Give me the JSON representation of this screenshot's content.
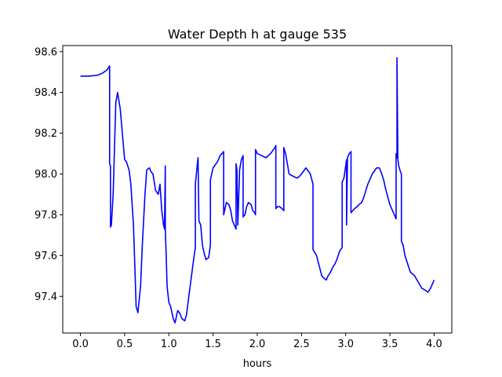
{
  "chart_data": {
    "type": "line",
    "title": "Water Depth h at gauge 535",
    "xlabel": "hours",
    "ylabel": "",
    "xlim": [
      -0.2,
      4.2
    ],
    "ylim": [
      97.22,
      98.63
    ],
    "xticks": [
      0.0,
      0.5,
      1.0,
      1.5,
      2.0,
      2.5,
      3.0,
      3.5,
      4.0
    ],
    "xtick_labels": [
      "0.0",
      "0.5",
      "1.0",
      "1.5",
      "2.0",
      "2.5",
      "3.0",
      "3.5",
      "4.0"
    ],
    "yticks": [
      97.4,
      97.6,
      97.8,
      98.0,
      98.2,
      98.4,
      98.6
    ],
    "ytick_labels": [
      "97.4",
      "97.6",
      "97.8",
      "98.0",
      "98.2",
      "98.4",
      "98.6"
    ],
    "grid": false,
    "series": [
      {
        "color": "#0000ff",
        "x": [
          0.0,
          0.1,
          0.2,
          0.25,
          0.3,
          0.33,
          0.33,
          0.34,
          0.34,
          0.35,
          0.37,
          0.4,
          0.42,
          0.45,
          0.47,
          0.5,
          0.52,
          0.55,
          0.57,
          0.6,
          0.63,
          0.65,
          0.68,
          0.7,
          0.73,
          0.75,
          0.78,
          0.8,
          0.82,
          0.85,
          0.88,
          0.9,
          0.92,
          0.94,
          0.95,
          0.96,
          0.96,
          0.97,
          0.98,
          1.0,
          1.02,
          1.05,
          1.07,
          1.1,
          1.12,
          1.15,
          1.18,
          1.2,
          1.22,
          1.25,
          1.28,
          1.3,
          1.3,
          1.32,
          1.33,
          1.34,
          1.36,
          1.38,
          1.4,
          1.42,
          1.45,
          1.47,
          1.47,
          1.5,
          1.55,
          1.58,
          1.6,
          1.62,
          1.62,
          1.63,
          1.65,
          1.68,
          1.7,
          1.72,
          1.73,
          1.75,
          1.76,
          1.76,
          1.77,
          1.78,
          1.8,
          1.82,
          1.84,
          1.84,
          1.86,
          1.86,
          1.88,
          1.9,
          1.93,
          1.95,
          1.97,
          1.98,
          1.98,
          2.0,
          2.05,
          2.1,
          2.15,
          2.2,
          2.21,
          2.21,
          2.23,
          2.25,
          2.28,
          2.3,
          2.3,
          2.32,
          2.34,
          2.36,
          2.4,
          2.45,
          2.48,
          2.5,
          2.55,
          2.6,
          2.63,
          2.63,
          2.67,
          2.7,
          2.73,
          2.75,
          2.78,
          2.8,
          2.83,
          2.85,
          2.88,
          2.9,
          2.93,
          2.96,
          2.96,
          2.98,
          3.0,
          3.01,
          3.01,
          3.02,
          3.04,
          3.06,
          3.06,
          3.08,
          3.1,
          3.13,
          3.15,
          3.18,
          3.2,
          3.25,
          3.3,
          3.35,
          3.38,
          3.4,
          3.43,
          3.45,
          3.48,
          3.5,
          3.53,
          3.56,
          3.57,
          3.57,
          3.58,
          3.58,
          3.59,
          3.6,
          3.62,
          3.63,
          3.63,
          3.65,
          3.67,
          3.7,
          3.73,
          3.78,
          3.82,
          3.86,
          3.9,
          3.93,
          3.96,
          4.0
        ],
        "y": [
          98.48,
          98.48,
          98.485,
          98.495,
          98.51,
          98.53,
          98.05,
          98.04,
          97.74,
          97.75,
          97.9,
          98.35,
          98.4,
          98.32,
          98.22,
          98.07,
          98.06,
          98.02,
          97.95,
          97.75,
          97.35,
          97.32,
          97.45,
          97.65,
          97.9,
          98.02,
          98.03,
          98.01,
          98.0,
          97.92,
          97.9,
          97.95,
          97.82,
          97.75,
          97.73,
          98.04,
          97.73,
          97.6,
          97.45,
          97.37,
          97.35,
          97.29,
          97.27,
          97.33,
          97.32,
          97.29,
          97.28,
          97.31,
          97.38,
          97.48,
          97.58,
          97.64,
          97.95,
          98.04,
          98.08,
          97.77,
          97.75,
          97.65,
          97.61,
          97.58,
          97.59,
          97.65,
          97.97,
          98.03,
          98.06,
          98.09,
          98.1,
          98.11,
          97.8,
          97.82,
          97.86,
          97.85,
          97.82,
          97.77,
          97.76,
          97.74,
          97.73,
          98.05,
          98.02,
          97.75,
          98.02,
          98.07,
          98.09,
          97.79,
          97.8,
          97.8,
          97.84,
          97.86,
          97.85,
          97.82,
          97.81,
          97.8,
          98.12,
          98.1,
          98.09,
          98.08,
          98.1,
          98.13,
          98.14,
          97.83,
          97.84,
          97.84,
          97.83,
          97.82,
          98.13,
          98.1,
          98.05,
          98.0,
          97.99,
          97.98,
          97.99,
          98.0,
          98.03,
          98.0,
          97.95,
          97.63,
          97.6,
          97.55,
          97.5,
          97.49,
          97.48,
          97.5,
          97.52,
          97.54,
          97.56,
          97.58,
          97.62,
          97.64,
          97.96,
          97.98,
          98.04,
          98.07,
          97.75,
          98.08,
          98.1,
          98.11,
          97.81,
          97.82,
          97.83,
          97.84,
          97.85,
          97.86,
          97.88,
          97.95,
          98.0,
          98.03,
          98.03,
          98.01,
          97.97,
          97.93,
          97.88,
          97.85,
          97.82,
          97.79,
          97.78,
          98.1,
          98.08,
          98.57,
          98.07,
          98.04,
          98.01,
          98.0,
          97.67,
          97.65,
          97.6,
          97.56,
          97.52,
          97.5,
          97.47,
          97.44,
          97.43,
          97.42,
          97.44,
          97.48
        ]
      }
    ]
  }
}
